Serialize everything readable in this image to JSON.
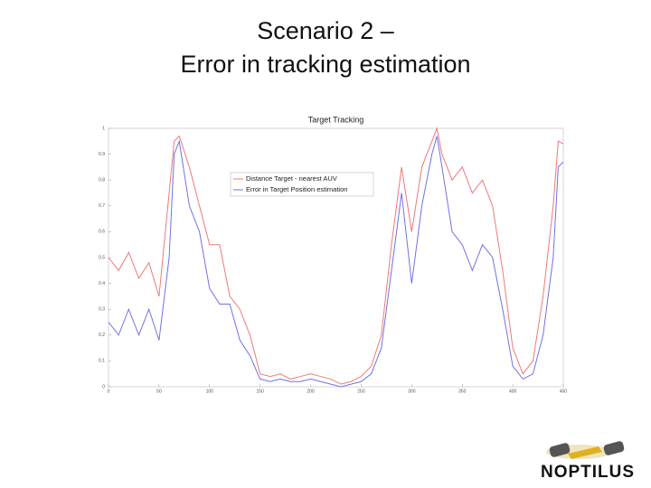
{
  "slide": {
    "title_line1": "Scenario 2 –",
    "title_line2": "Error in tracking estimation",
    "logo": "NOPTILUS"
  },
  "chart_data": {
    "type": "line",
    "title": "Target Tracking",
    "x": [
      0,
      10,
      20,
      30,
      40,
      50,
      60,
      65,
      70,
      80,
      90,
      100,
      110,
      120,
      130,
      140,
      150,
      160,
      170,
      180,
      190,
      200,
      210,
      220,
      230,
      240,
      250,
      260,
      270,
      280,
      290,
      300,
      310,
      320,
      325,
      330,
      340,
      350,
      360,
      370,
      380,
      390,
      400,
      410,
      420,
      430,
      440,
      445,
      450
    ],
    "series": [
      {
        "name": "Distance Target - nearest AUV",
        "color": "#f07878",
        "values": [
          0.5,
          0.45,
          0.52,
          0.42,
          0.48,
          0.35,
          0.75,
          0.95,
          0.97,
          0.85,
          0.7,
          0.55,
          0.55,
          0.35,
          0.3,
          0.2,
          0.05,
          0.04,
          0.05,
          0.03,
          0.04,
          0.05,
          0.04,
          0.03,
          0.01,
          0.02,
          0.04,
          0.08,
          0.2,
          0.55,
          0.85,
          0.6,
          0.85,
          0.95,
          1.0,
          0.9,
          0.8,
          0.85,
          0.75,
          0.8,
          0.7,
          0.45,
          0.15,
          0.05,
          0.1,
          0.35,
          0.7,
          0.95,
          0.94
        ]
      },
      {
        "name": "Error in Target Position estimation",
        "color": "#7070e8",
        "values": [
          0.25,
          0.2,
          0.3,
          0.2,
          0.3,
          0.18,
          0.5,
          0.9,
          0.95,
          0.7,
          0.6,
          0.38,
          0.32,
          0.32,
          0.18,
          0.12,
          0.03,
          0.02,
          0.03,
          0.02,
          0.02,
          0.03,
          0.02,
          0.01,
          0,
          0.01,
          0.02,
          0.05,
          0.15,
          0.45,
          0.75,
          0.4,
          0.7,
          0.9,
          0.97,
          0.85,
          0.6,
          0.55,
          0.45,
          0.55,
          0.5,
          0.3,
          0.08,
          0.03,
          0.05,
          0.2,
          0.5,
          0.85,
          0.87
        ]
      }
    ],
    "xlim": [
      0,
      450
    ],
    "xticks": [
      0,
      50,
      100,
      150,
      200,
      250,
      300,
      350,
      400,
      450
    ],
    "ylim": [
      0,
      1
    ],
    "yticks": [
      0,
      0.1,
      0.2,
      0.3,
      0.4,
      0.5,
      0.6,
      0.7,
      0.8,
      0.9,
      1
    ],
    "grid": false,
    "legend": "upper left"
  }
}
